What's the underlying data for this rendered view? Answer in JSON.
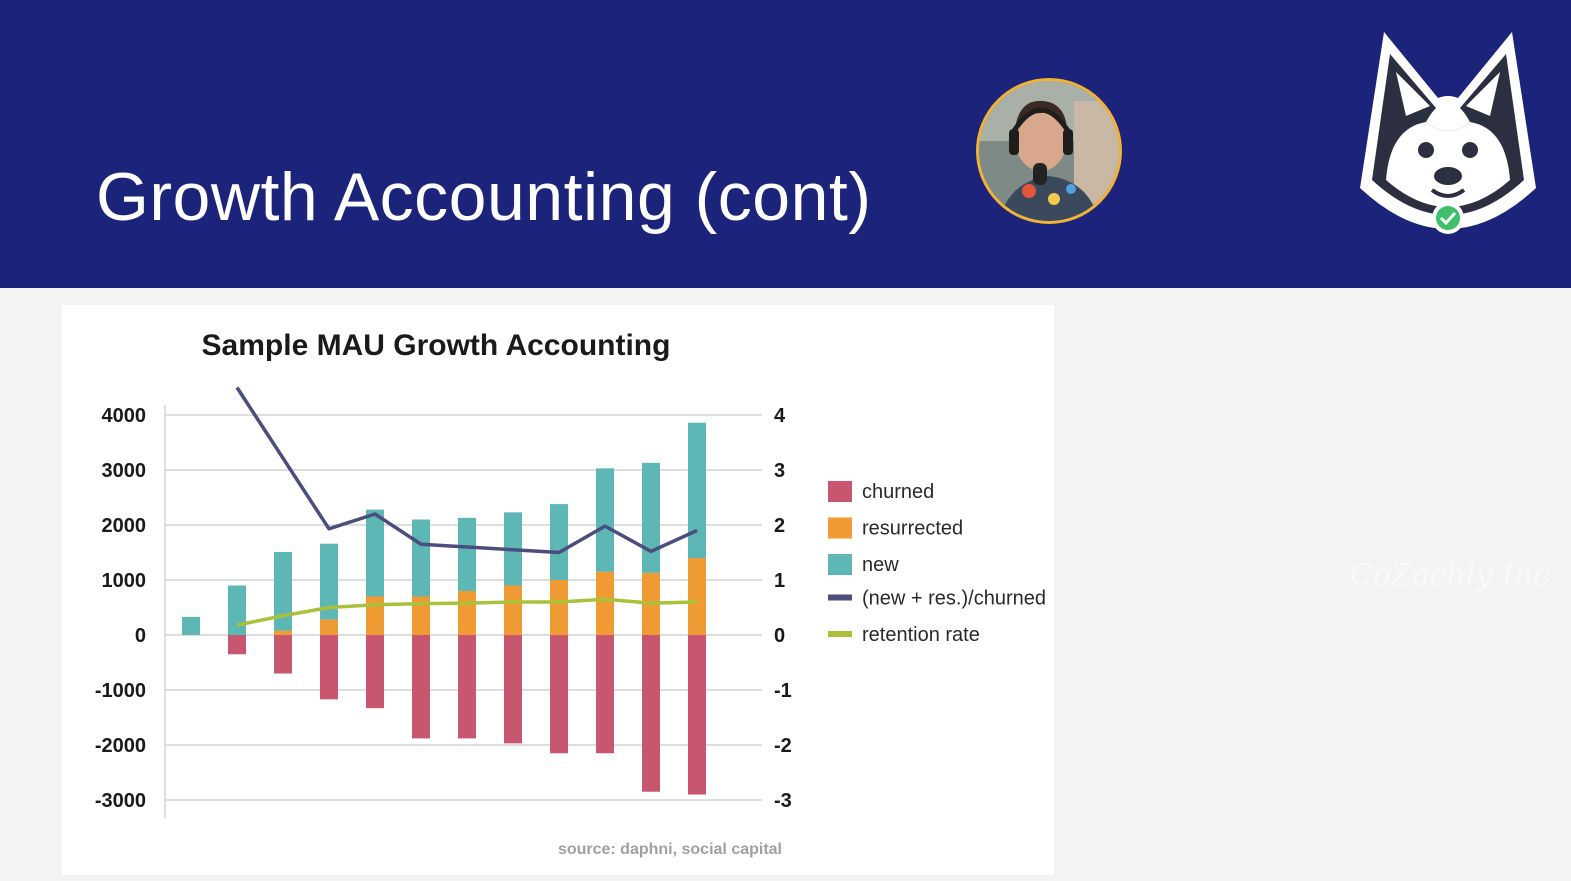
{
  "slide": {
    "title": "Growth Accounting (cont)",
    "watermark": "CoZachly Inc",
    "header_color": "#1b237a"
  },
  "icons": {
    "webcam": "presenter-webcam",
    "logo": "husky-logo-icon",
    "check": "check-badge-icon"
  },
  "chart_data": {
    "type": "bar",
    "title": "Sample MAU Growth Accounting",
    "source": "source: daphni, social capital",
    "categories": [
      "",
      "",
      "",
      "",
      "",
      "",
      "",
      "",
      "",
      "",
      "",
      ""
    ],
    "ylim": [
      -3000,
      4000
    ],
    "y_ticks": [
      "4000",
      "3000",
      "2000",
      "1000",
      "0",
      "-1000",
      "-2000",
      "-3000"
    ],
    "y2lim": [
      -3,
      4
    ],
    "y2_ticks": [
      "4",
      "3",
      "2",
      "1",
      "0",
      "-1",
      "-2",
      "-3"
    ],
    "stacked": true,
    "grid": true,
    "legend_position": "right",
    "series": [
      {
        "name": "churned",
        "color": "#c8566f",
        "axis": "left",
        "kind": "bar",
        "values": [
          0,
          -350,
          -700,
          -1170,
          -1330,
          -1880,
          -1880,
          -1970,
          -2150,
          -2150,
          -2850,
          -2900
        ]
      },
      {
        "name": "resurrected",
        "color": "#ef9a33",
        "axis": "left",
        "kind": "bar",
        "values": [
          0,
          0,
          80,
          280,
          700,
          700,
          800,
          900,
          1000,
          1150,
          1130,
          1400
        ]
      },
      {
        "name": "new",
        "color": "#5db7b4",
        "axis": "left",
        "kind": "bar",
        "values": [
          330,
          900,
          1430,
          1380,
          1580,
          1400,
          1330,
          1330,
          1380,
          1880,
          2000,
          2460
        ]
      },
      {
        "name": "(new + res.)/churned",
        "color": "#4b4d7e",
        "axis": "right",
        "kind": "line",
        "values": [
          null,
          4.5,
          null,
          1.93,
          2.2,
          1.65,
          1.6,
          1.55,
          1.5,
          1.98,
          1.52,
          1.9
        ]
      },
      {
        "name": "retention rate",
        "color": "#a9c23a",
        "axis": "right",
        "kind": "line",
        "values": [
          null,
          0.18,
          0.35,
          0.5,
          0.55,
          0.57,
          0.58,
          0.6,
          0.6,
          0.65,
          0.58,
          0.6
        ]
      }
    ]
  }
}
